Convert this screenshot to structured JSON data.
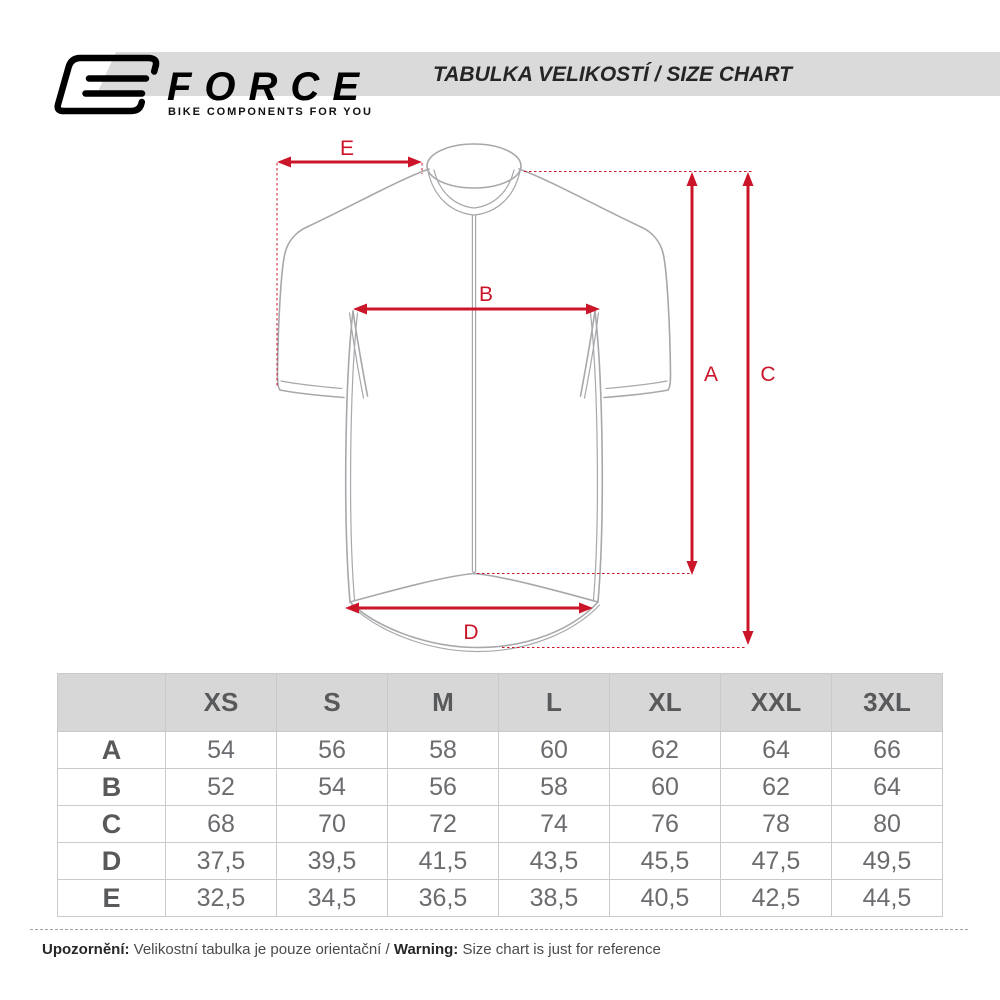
{
  "colors": {
    "accent": "#cb1528",
    "outline": "#a8a8ac",
    "band": "#dadadb",
    "table_header_bg": "#d7d7d8",
    "header_text": "#58595b",
    "value_text": "#6b6c6f"
  },
  "header": {
    "logo": {
      "brand": "FORCE",
      "tagline": "BIKE COMPONENTS FOR YOU"
    },
    "title": "TABULKA VELIKOSTÍ / SIZE CHART"
  },
  "diagram": {
    "labels": {
      "A": "A",
      "B": "B",
      "C": "C",
      "D": "D",
      "E": "E"
    }
  },
  "table": {
    "columns": [
      "XS",
      "S",
      "M",
      "L",
      "XL",
      "XXL",
      "3XL"
    ],
    "rows": [
      {
        "label": "A",
        "values": [
          "54",
          "56",
          "58",
          "60",
          "62",
          "64",
          "66"
        ]
      },
      {
        "label": "B",
        "values": [
          "52",
          "54",
          "56",
          "58",
          "60",
          "62",
          "64"
        ]
      },
      {
        "label": "C",
        "values": [
          "68",
          "70",
          "72",
          "74",
          "76",
          "78",
          "80"
        ]
      },
      {
        "label": "D",
        "values": [
          "37,5",
          "39,5",
          "41,5",
          "43,5",
          "45,5",
          "47,5",
          "49,5"
        ]
      },
      {
        "label": "E",
        "values": [
          "32,5",
          "34,5",
          "36,5",
          "38,5",
          "40,5",
          "42,5",
          "44,5"
        ]
      }
    ]
  },
  "footer": {
    "note_cs_label": "Upozornění:",
    "note_cs": " Velikostní tabulka je pouze orientační / ",
    "note_en_label": "Warning:",
    "note_en": " Size chart is just for reference"
  }
}
